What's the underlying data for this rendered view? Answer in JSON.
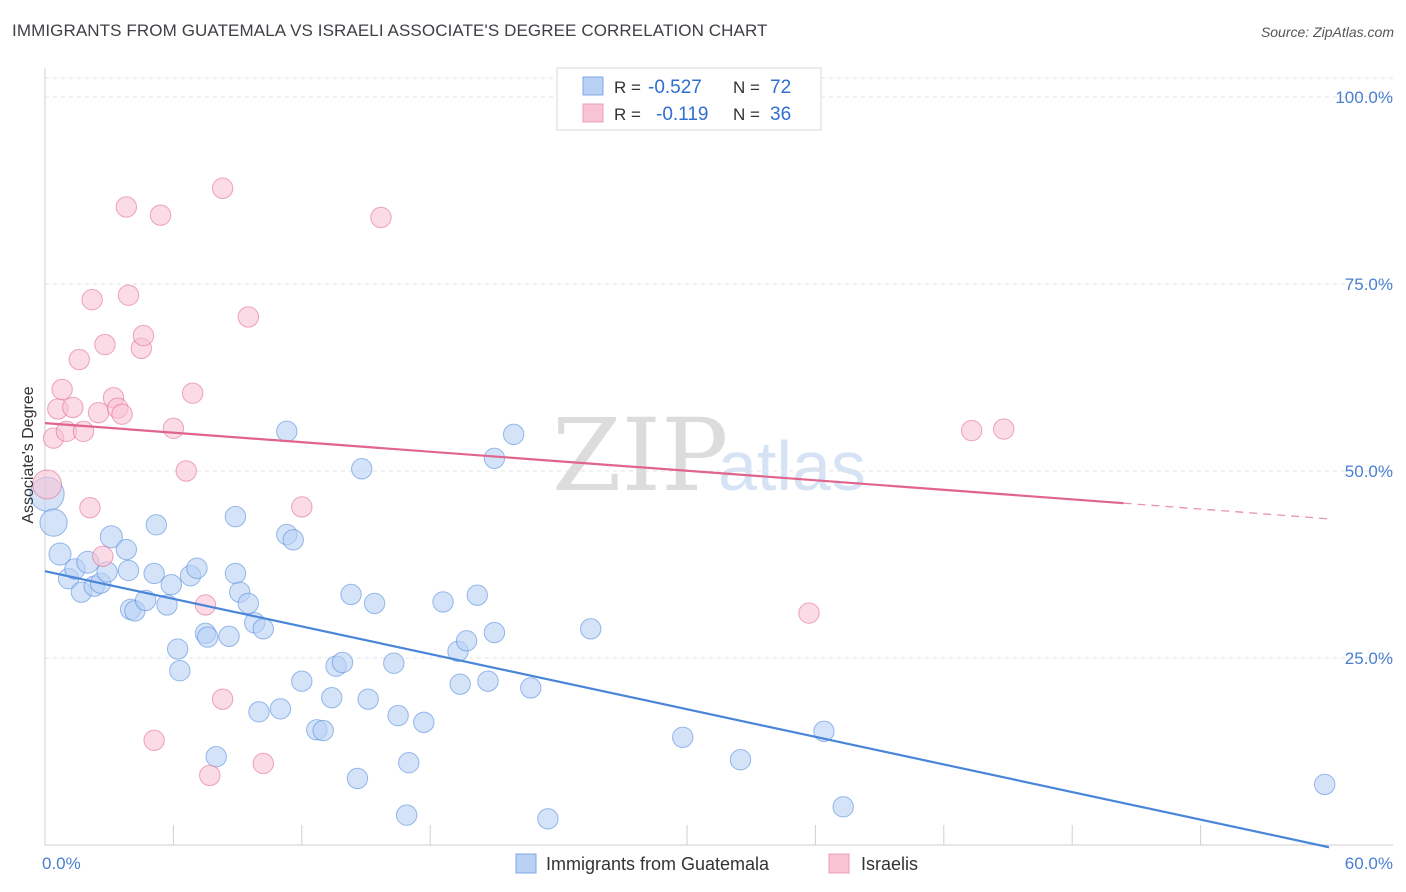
{
  "header": {
    "title": "IMMIGRANTS FROM GUATEMALA VS ISRAELI ASSOCIATE'S DEGREE CORRELATION CHART",
    "source": "Source: ZipAtlas.com"
  },
  "watermark": {
    "zip": "ZIP",
    "atlas": "atlas"
  },
  "legend_box": {
    "rows": [
      {
        "r_label": "R =",
        "r_value": "-0.527",
        "n_label": "N =",
        "n_value": "72",
        "color": "#b9d1f5"
      },
      {
        "r_label": "R =",
        "r_value": "-0.119",
        "n_label": "N =",
        "n_value": "36",
        "color": "#f8c3d3"
      }
    ]
  },
  "bottom_legend": [
    {
      "label": "Immigrants from Guatemala",
      "color": "#b9d1f5"
    },
    {
      "label": "Israelis",
      "color": "#f8c3d3"
    }
  ],
  "chart_data": {
    "type": "scatter",
    "title": "IMMIGRANTS FROM GUATEMALA VS ISRAELI ASSOCIATE'S DEGREE CORRELATION CHART",
    "xlabel": "",
    "ylabel": "Associate's Degree",
    "xlim": [
      0,
      60
    ],
    "ylim": [
      0,
      102
    ],
    "x_tick_labels": [
      {
        "value": 0,
        "label": "0.0%"
      },
      {
        "value": 60,
        "label": "60.0%"
      }
    ],
    "y_tick_labels": [
      {
        "value": 100,
        "label": "100.0%"
      },
      {
        "value": 75,
        "label": "75.0%"
      },
      {
        "value": 50,
        "label": "50.0%"
      },
      {
        "value": 25,
        "label": "25.0%"
      }
    ],
    "x_minor_ticks": [
      6,
      12,
      18,
      30,
      36,
      42,
      48,
      54
    ],
    "series": [
      {
        "name": "Immigrants from Guatemala",
        "color": "#4a86d8",
        "fill": "#b9d1f5",
        "trend": {
          "x0": 0,
          "y0": 36.6,
          "x1": 60,
          "y1": -0.3
        },
        "points": [
          [
            0.1,
            46.9,
            2.0
          ],
          [
            0.4,
            43.1,
            1.6
          ],
          [
            0.7,
            38.9,
            1.3
          ],
          [
            1.1,
            35.6,
            1.2
          ],
          [
            1.4,
            36.9,
            1.2
          ],
          [
            1.7,
            33.8,
            1.2
          ],
          [
            2.0,
            37.8,
            1.3
          ],
          [
            2.3,
            34.6,
            1.2
          ],
          [
            2.6,
            35.0,
            1.2
          ],
          [
            2.9,
            36.5,
            1.2
          ],
          [
            3.1,
            41.2,
            1.3
          ],
          [
            3.8,
            39.5,
            1.2
          ],
          [
            3.9,
            36.7,
            1.2
          ],
          [
            4.0,
            31.5,
            1.2
          ],
          [
            4.2,
            31.3,
            1.2
          ],
          [
            4.7,
            32.7,
            1.2
          ],
          [
            5.1,
            36.3,
            1.2
          ],
          [
            5.2,
            42.8,
            1.2
          ],
          [
            5.7,
            32.1,
            1.2
          ],
          [
            5.9,
            34.8,
            1.2
          ],
          [
            6.2,
            26.2,
            1.2
          ],
          [
            6.3,
            23.3,
            1.2
          ],
          [
            6.8,
            36.0,
            1.2
          ],
          [
            7.1,
            37.0,
            1.2
          ],
          [
            7.5,
            28.3,
            1.2
          ],
          [
            7.6,
            27.8,
            1.2
          ],
          [
            8.0,
            11.8,
            1.2
          ],
          [
            8.6,
            27.9,
            1.2
          ],
          [
            8.9,
            43.9,
            1.2
          ],
          [
            8.9,
            36.3,
            1.2
          ],
          [
            9.1,
            33.8,
            1.2
          ],
          [
            9.5,
            32.3,
            1.2
          ],
          [
            9.8,
            29.7,
            1.2
          ],
          [
            10.0,
            17.8,
            1.2
          ],
          [
            10.2,
            28.9,
            1.2
          ],
          [
            11.0,
            18.2,
            1.2
          ],
          [
            11.3,
            55.3,
            1.2
          ],
          [
            11.3,
            41.5,
            1.2
          ],
          [
            11.6,
            40.8,
            1.2
          ],
          [
            12.0,
            21.9,
            1.2
          ],
          [
            12.7,
            15.4,
            1.2
          ],
          [
            13.0,
            15.3,
            1.2
          ],
          [
            13.4,
            19.7,
            1.2
          ],
          [
            13.6,
            23.9,
            1.2
          ],
          [
            13.9,
            24.4,
            1.2
          ],
          [
            14.3,
            33.5,
            1.2
          ],
          [
            14.6,
            8.9,
            1.2
          ],
          [
            14.8,
            50.3,
            1.2
          ],
          [
            15.1,
            19.5,
            1.2
          ],
          [
            15.4,
            32.3,
            1.2
          ],
          [
            16.3,
            24.3,
            1.2
          ],
          [
            16.5,
            17.3,
            1.2
          ],
          [
            16.9,
            4.0,
            1.2
          ],
          [
            17.0,
            11.0,
            1.2
          ],
          [
            17.7,
            16.4,
            1.2
          ],
          [
            18.6,
            32.5,
            1.2
          ],
          [
            19.3,
            25.9,
            1.2
          ],
          [
            19.4,
            21.5,
            1.2
          ],
          [
            19.7,
            27.3,
            1.2
          ],
          [
            20.2,
            33.4,
            1.2
          ],
          [
            20.7,
            21.9,
            1.2
          ],
          [
            21.0,
            28.4,
            1.2
          ],
          [
            21.0,
            51.7,
            1.2
          ],
          [
            21.9,
            54.9,
            1.2
          ],
          [
            22.7,
            21.0,
            1.2
          ],
          [
            23.5,
            3.5,
            1.2
          ],
          [
            25.5,
            28.9,
            1.2
          ],
          [
            29.8,
            14.4,
            1.2
          ],
          [
            32.5,
            11.4,
            1.2
          ],
          [
            36.4,
            15.2,
            1.2
          ],
          [
            37.3,
            5.1,
            1.2
          ],
          [
            59.8,
            8.1,
            1.2
          ]
        ]
      },
      {
        "name": "Israelis",
        "color": "#e0648c",
        "fill": "#f8c3d3",
        "trend": {
          "x0": 0,
          "y0": 56.4,
          "x1": 50.4,
          "y1": 45.7,
          "dash_to_x": 60,
          "dash_to_y": 43.6
        },
        "points": [
          [
            0.1,
            48.2,
            1.7
          ],
          [
            0.4,
            54.4,
            1.2
          ],
          [
            0.6,
            58.3,
            1.2
          ],
          [
            0.8,
            60.9,
            1.2
          ],
          [
            1.0,
            55.3,
            1.2
          ],
          [
            1.3,
            58.5,
            1.2
          ],
          [
            1.6,
            64.9,
            1.2
          ],
          [
            1.8,
            55.3,
            1.2
          ],
          [
            2.1,
            45.1,
            1.2
          ],
          [
            2.2,
            72.9,
            1.2
          ],
          [
            2.5,
            57.8,
            1.2
          ],
          [
            2.7,
            38.6,
            1.2
          ],
          [
            2.8,
            66.9,
            1.2
          ],
          [
            3.2,
            59.8,
            1.2
          ],
          [
            3.4,
            58.4,
            1.2
          ],
          [
            3.6,
            57.6,
            1.2
          ],
          [
            3.8,
            85.3,
            1.2
          ],
          [
            3.9,
            73.5,
            1.2
          ],
          [
            4.5,
            66.4,
            1.2
          ],
          [
            4.6,
            68.1,
            1.2
          ],
          [
            5.1,
            14.0,
            1.2
          ],
          [
            5.4,
            84.2,
            1.2
          ],
          [
            6.0,
            55.7,
            1.2
          ],
          [
            6.6,
            50.0,
            1.2
          ],
          [
            6.9,
            60.4,
            1.2
          ],
          [
            7.5,
            32.1,
            1.2
          ],
          [
            7.7,
            9.3,
            1.2
          ],
          [
            8.3,
            19.5,
            1.2
          ],
          [
            8.3,
            87.8,
            1.2
          ],
          [
            9.5,
            70.6,
            1.2
          ],
          [
            10.2,
            10.9,
            1.2
          ],
          [
            12.0,
            45.2,
            1.2
          ],
          [
            15.7,
            83.9,
            1.2
          ],
          [
            35.7,
            31.0,
            1.2
          ],
          [
            43.3,
            55.4,
            1.2
          ],
          [
            44.8,
            55.6,
            1.2
          ]
        ]
      }
    ]
  }
}
